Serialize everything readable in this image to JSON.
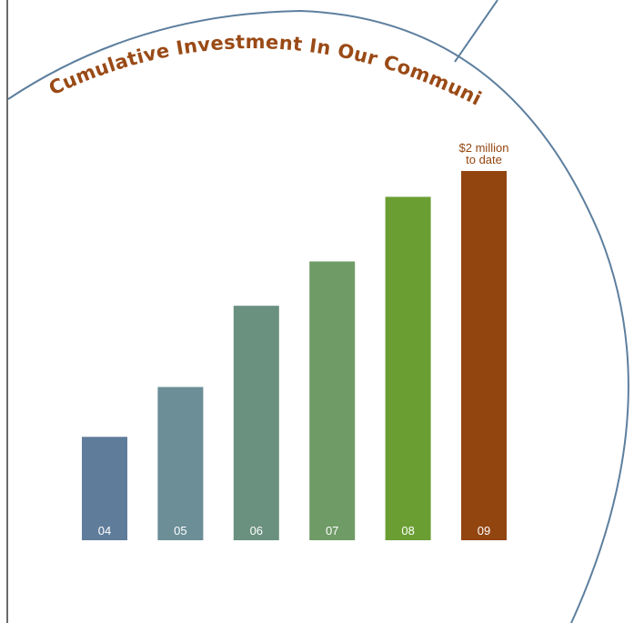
{
  "chart_data": {
    "type": "bar",
    "title": "Cumulative Investment In Our Communities",
    "categories": [
      "04",
      "05",
      "06",
      "07",
      "08",
      "09"
    ],
    "values": [
      0.56,
      0.83,
      1.27,
      1.51,
      1.86,
      2.0
    ],
    "bar_colors": [
      "#5f7c9a",
      "#6b8e97",
      "#6a9080",
      "#6f9b66",
      "#6a9e33",
      "#934510"
    ],
    "annotation": {
      "category": "09",
      "lines": [
        "$2 million",
        "to date"
      ]
    },
    "ylim": [
      0,
      2.0
    ],
    "xlabel": "",
    "ylabel": "",
    "grid": false,
    "legend": "none",
    "colors": {
      "title": "#9a4a16",
      "tick_label": "#ffffff",
      "annotation": "#934510",
      "circle_outline": "#5d7f9e",
      "border": "#6b6b6b"
    }
  }
}
